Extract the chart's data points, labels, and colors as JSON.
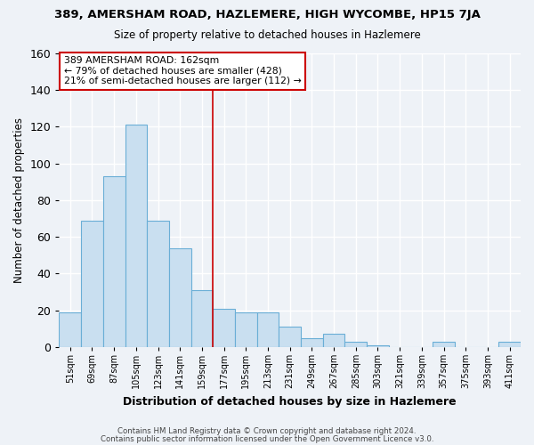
{
  "title": "389, AMERSHAM ROAD, HAZLEMERE, HIGH WYCOMBE, HP15 7JA",
  "subtitle": "Size of property relative to detached houses in Hazlemere",
  "xlabel": "Distribution of detached houses by size in Hazlemere",
  "ylabel": "Number of detached properties",
  "bin_labels": [
    "51sqm",
    "69sqm",
    "87sqm",
    "105sqm",
    "123sqm",
    "141sqm",
    "159sqm",
    "177sqm",
    "195sqm",
    "213sqm",
    "231sqm",
    "249sqm",
    "267sqm",
    "285sqm",
    "303sqm",
    "321sqm",
    "339sqm",
    "357sqm",
    "375sqm",
    "393sqm",
    "411sqm"
  ],
  "bar_values": [
    19,
    69,
    93,
    121,
    69,
    54,
    31,
    21,
    19,
    19,
    11,
    5,
    7,
    3,
    1,
    0,
    0,
    3,
    0,
    0,
    3
  ],
  "bar_color": "#c9dff0",
  "bar_edge_color": "#6aaed6",
  "annotation_box_text": "389 AMERSHAM ROAD: 162sqm\n← 79% of detached houses are smaller (428)\n21% of semi-detached houses are larger (112) →",
  "vline_color": "#cc0000",
  "vline_x": 6.5,
  "ylim": [
    0,
    160
  ],
  "yticks": [
    0,
    20,
    40,
    60,
    80,
    100,
    120,
    140,
    160
  ],
  "footer_line1": "Contains HM Land Registry data © Crown copyright and database right 2024.",
  "footer_line2": "Contains public sector information licensed under the Open Government Licence v3.0.",
  "background_color": "#eef2f7",
  "grid_color": "#ffffff"
}
